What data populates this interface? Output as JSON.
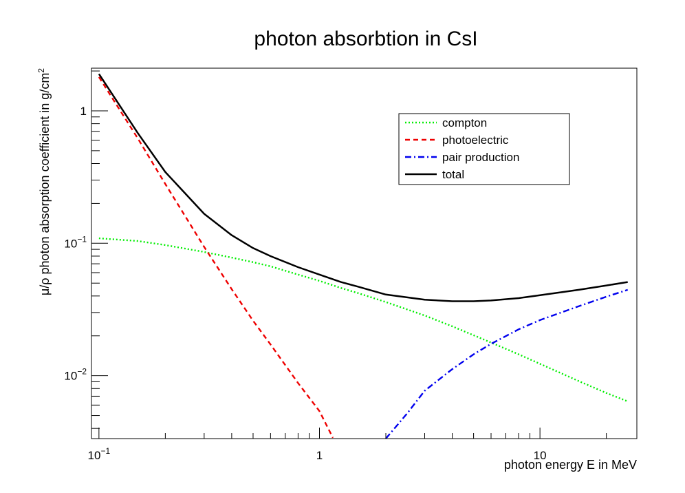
{
  "chart_data": {
    "type": "line",
    "title": "photon absorbtion in CsI",
    "xlabel": "photon energy E in MeV",
    "ylabel": "μ/ρ photon absorption coefficient in  g/cm",
    "ylabel_sup": "2",
    "x_scale": "log",
    "y_scale": "log",
    "xlim": [
      0.0925,
      27.5
    ],
    "ylim": [
      0.00335,
      2.1
    ],
    "x_ticks": [
      {
        "value": 0.1,
        "base": "10",
        "exp": "−1"
      },
      {
        "value": 1,
        "base": "1",
        "exp": ""
      },
      {
        "value": 10,
        "base": "10",
        "exp": ""
      }
    ],
    "y_ticks": [
      {
        "value": 0.01,
        "base": "10",
        "exp": "−2"
      },
      {
        "value": 0.1,
        "base": "10",
        "exp": "−1"
      },
      {
        "value": 1,
        "base": "1",
        "exp": ""
      }
    ],
    "legend_position": "top-right",
    "series": [
      {
        "name": "compton",
        "color": "#00ee00",
        "dash": "dotted",
        "x": [
          0.1,
          0.15,
          0.2,
          0.3,
          0.4,
          0.5,
          0.6,
          0.8,
          1,
          1.25,
          1.5,
          2,
          3,
          4,
          5,
          6,
          8,
          10,
          15,
          20,
          25
        ],
        "y": [
          0.109,
          0.104,
          0.097,
          0.086,
          0.078,
          0.072,
          0.067,
          0.058,
          0.052,
          0.046,
          0.042,
          0.036,
          0.0285,
          0.0236,
          0.0202,
          0.0178,
          0.0145,
          0.0123,
          0.0091,
          0.0074,
          0.0064
        ]
      },
      {
        "name": "photoelectric",
        "color": "#ee0000",
        "dash": "dashed",
        "x": [
          0.1,
          0.15,
          0.2,
          0.3,
          0.4,
          0.5,
          0.6,
          0.8,
          1,
          1.15
        ],
        "y": [
          1.8,
          0.62,
          0.28,
          0.094,
          0.045,
          0.026,
          0.0172,
          0.0088,
          0.0054,
          0.0034
        ]
      },
      {
        "name": "pair production",
        "color": "#0000ee",
        "dash": "dashdot",
        "x": [
          2,
          2.5,
          3,
          4,
          5,
          6,
          8,
          10,
          15,
          20,
          25
        ],
        "y": [
          0.00335,
          0.0052,
          0.0077,
          0.0112,
          0.0145,
          0.0174,
          0.0224,
          0.0263,
          0.0335,
          0.0395,
          0.0445
        ]
      },
      {
        "name": "total",
        "color": "#000000",
        "dash": "solid",
        "x": [
          0.1,
          0.15,
          0.2,
          0.3,
          0.4,
          0.5,
          0.6,
          0.8,
          1,
          1.25,
          1.5,
          2,
          3,
          4,
          5,
          6,
          8,
          10,
          15,
          20,
          25
        ],
        "y": [
          1.9,
          0.68,
          0.345,
          0.167,
          0.115,
          0.092,
          0.08,
          0.066,
          0.058,
          0.051,
          0.047,
          0.041,
          0.0375,
          0.0365,
          0.0365,
          0.037,
          0.0385,
          0.0405,
          0.0445,
          0.048,
          0.051
        ]
      }
    ]
  }
}
